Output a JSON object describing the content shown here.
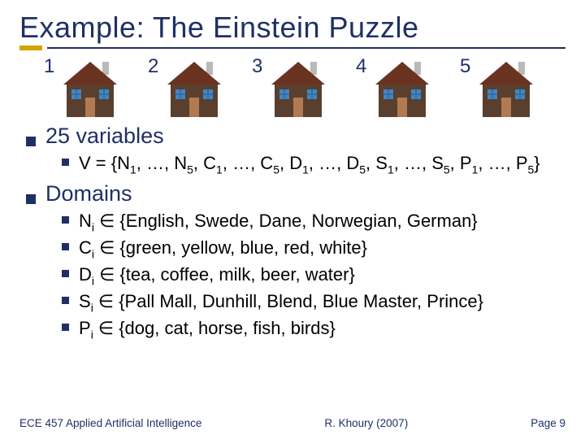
{
  "colors": {
    "title": "#1f2f66",
    "accent": "#d2a400",
    "house_wall": "#5a3f2e",
    "house_roof": "#6a3320",
    "house_window": "#3e86c6",
    "house_door": "#b07b52",
    "chimney": "#b8bab7"
  },
  "title": "Example: The Einstein Puzzle",
  "houses": [
    {
      "n": "1"
    },
    {
      "n": "2"
    },
    {
      "n": "3"
    },
    {
      "n": "4"
    },
    {
      "n": "5"
    }
  ],
  "section1_label": "25 variables",
  "section1_item": "V = {N<sub class=\"sub\">1</sub>, …, N<sub class=\"sub\">5</sub>, C<sub class=\"sub\">1</sub>, …, C<sub class=\"sub\">5</sub>, D<sub class=\"sub\">1</sub>, …, D<sub class=\"sub\">5</sub>, S<sub class=\"sub\">1</sub>, …, S<sub class=\"sub\">5</sub>, P<sub class=\"sub\">1</sub>, …, P<sub class=\"sub\">5</sub>}",
  "section2_label": "Domains",
  "domains": [
    "N<sub class=\"sub\">i</sub> ∈ {English, Swede, Dane, Norwegian, German}",
    "C<sub class=\"sub\">i</sub> ∈ {green, yellow, blue, red, white}",
    "D<sub class=\"sub\">i</sub> ∈ {tea, coffee, milk, beer, water}",
    "S<sub class=\"sub\">i</sub> ∈ {Pall Mall, Dunhill, Blend, Blue Master, Prince}",
    "P<sub class=\"sub\">i</sub> ∈ {dog, cat, horse, fish, birds}"
  ],
  "footer": {
    "left": "ECE 457 Applied Artificial Intelligence",
    "center": "R. Khoury (2007)",
    "right": "Page 9"
  }
}
